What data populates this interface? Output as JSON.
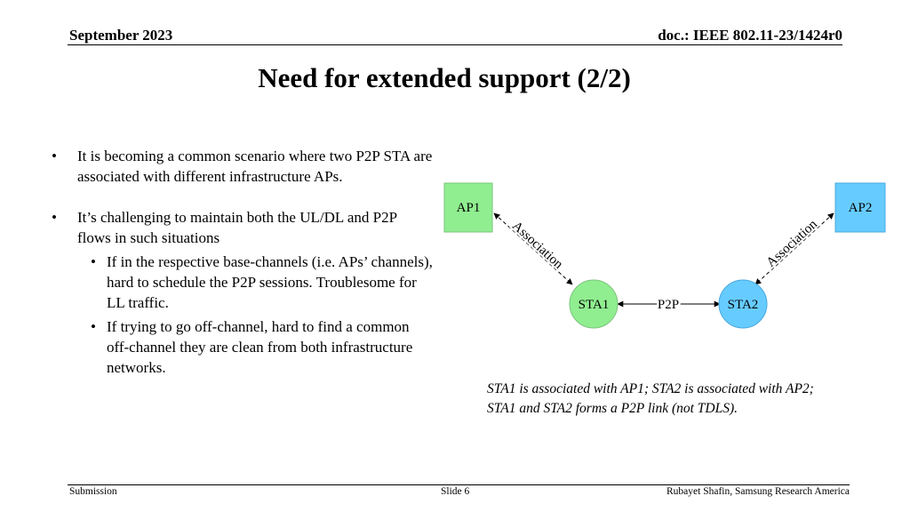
{
  "header": {
    "date": "September 2023",
    "doc": "doc.: IEEE 802.11-23/1424r0"
  },
  "title": "Need for extended support (2/2)",
  "bullets": [
    {
      "text": "It is becoming a common scenario where two P2P STA are associated with different infrastructure APs."
    },
    {
      "text": "It’s challenging to maintain both the UL/DL and P2P flows in such situations",
      "sub": [
        "If in the respective base-channels (i.e. APs’ channels), hard to schedule the P2P sessions. Troublesome for LL traffic.",
        "If trying to go off-channel, hard to find a common off-channel they are clean from both infrastructure networks."
      ]
    }
  ],
  "diagram": {
    "ap1": "AP1",
    "ap2": "AP2",
    "sta1": "STA1",
    "sta2": "STA2",
    "link_left": "Association",
    "link_right": "Association",
    "link_p2p": "P2P",
    "colors": {
      "ap1": "#90EE90",
      "ap2": "#66CCFF",
      "sta1": "#90EE90",
      "sta2": "#66CCFF"
    }
  },
  "caption": {
    "line1": "STA1 is associated with AP1; STA2 is associated with AP2;",
    "line2": "STA1 and STA2 forms a P2P link (not TDLS)."
  },
  "footer": {
    "left": "Submission",
    "center": "Slide 6",
    "right": "Rubayet Shafin, Samsung Research America"
  }
}
